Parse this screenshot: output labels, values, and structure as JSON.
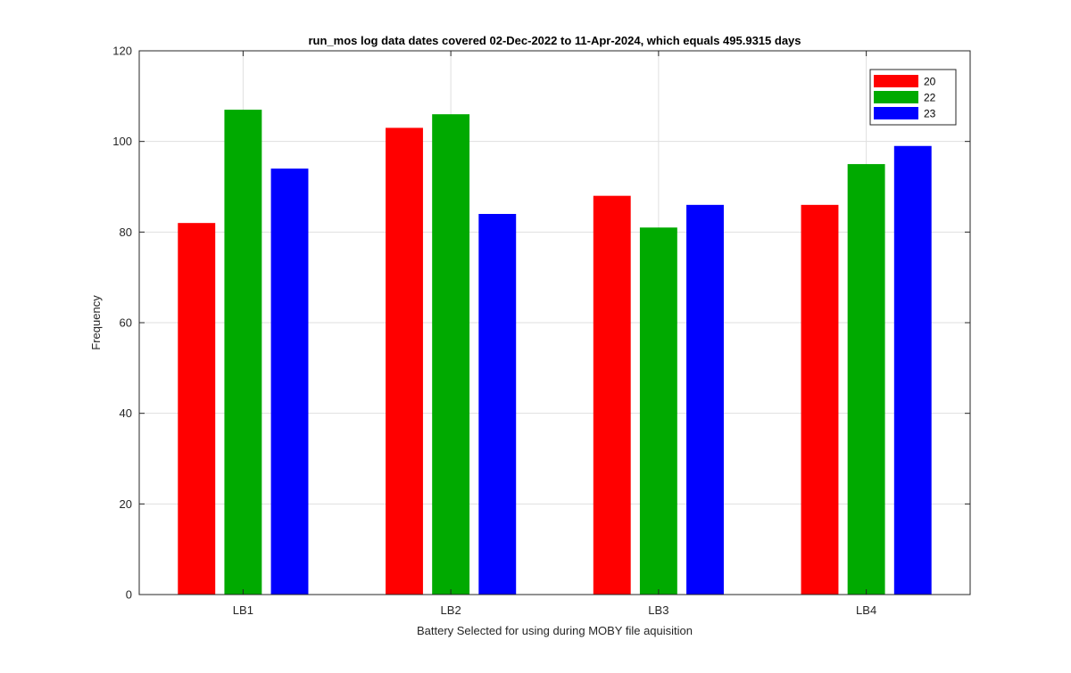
{
  "chart_data": {
    "type": "bar",
    "title": "run_mos log data  dates covered 02-Dec-2022 to 11-Apr-2024, which equals 495.9315 days",
    "xlabel": "Battery Selected for using during MOBY file aquisition",
    "ylabel": "Frequency",
    "categories": [
      "LB1",
      "LB2",
      "LB3",
      "LB4"
    ],
    "ylim": [
      0,
      120
    ],
    "yticks": [
      0,
      20,
      40,
      60,
      80,
      100,
      120
    ],
    "grid": true,
    "legend_position": "top-right",
    "series": [
      {
        "name": "20",
        "color": "#ff0000",
        "values": [
          82,
          103,
          88,
          86
        ]
      },
      {
        "name": "22",
        "color": "#00aa00",
        "values": [
          107,
          106,
          81,
          95
        ]
      },
      {
        "name": "23",
        "color": "#0000ff",
        "values": [
          94,
          84,
          86,
          99
        ]
      }
    ]
  }
}
